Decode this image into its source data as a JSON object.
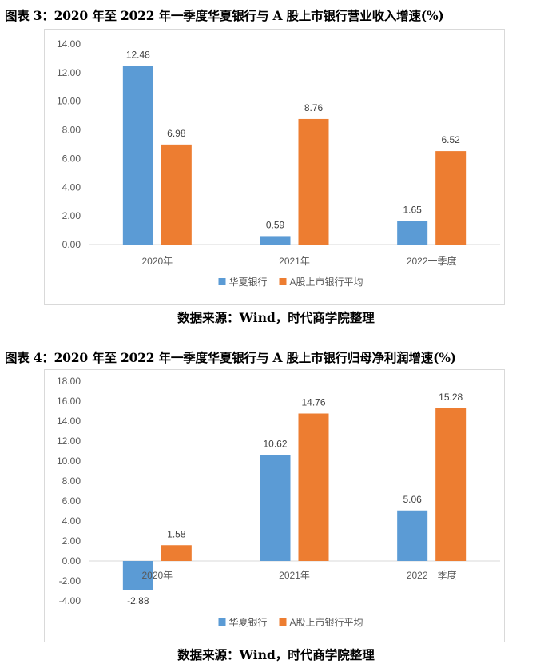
{
  "figures": [
    {
      "title": "图表 3：2020 年至 2022 年一季度华夏银行与 A 股上市银行营业收入增速(%)",
      "source": "数据来源：Wind，时代商学院整理"
    },
    {
      "title": "图表 4：2020 年至 2022 年一季度华夏银行与 A 股上市银行归母净利润增速(%)",
      "source": "数据来源：Wind，时代商学院整理"
    }
  ],
  "colors": {
    "series1": "#5b9bd5",
    "series2": "#ed7d31",
    "grid": "#d9d9d9",
    "axis_text": "#595959"
  },
  "chart_data": [
    {
      "type": "bar",
      "categories": [
        "2020年",
        "2021年",
        "2022一季度"
      ],
      "series": [
        {
          "name": "华夏银行",
          "values": [
            12.48,
            0.59,
            1.65
          ]
        },
        {
          "name": "A股上市银行平均",
          "values": [
            6.98,
            8.76,
            6.52
          ]
        }
      ],
      "ylim": [
        0,
        14
      ],
      "ytick_step": 2,
      "ytick_labels": [
        "0.00",
        "2.00",
        "4.00",
        "6.00",
        "8.00",
        "10.00",
        "12.00",
        "14.00"
      ],
      "grid": false,
      "legend": "bottom"
    },
    {
      "type": "bar",
      "categories": [
        "2020年",
        "2021年",
        "2022一季度"
      ],
      "series": [
        {
          "name": "华夏银行",
          "values": [
            -2.88,
            10.62,
            5.06
          ]
        },
        {
          "name": "A股上市银行平均",
          "values": [
            1.58,
            14.76,
            15.28
          ]
        }
      ],
      "ylim": [
        -4,
        18
      ],
      "ytick_step": 2,
      "ytick_labels": [
        "-4.00",
        "-2.00",
        "0.00",
        "2.00",
        "4.00",
        "6.00",
        "8.00",
        "10.00",
        "12.00",
        "14.00",
        "16.00",
        "18.00"
      ],
      "grid": false,
      "legend": "bottom"
    }
  ]
}
